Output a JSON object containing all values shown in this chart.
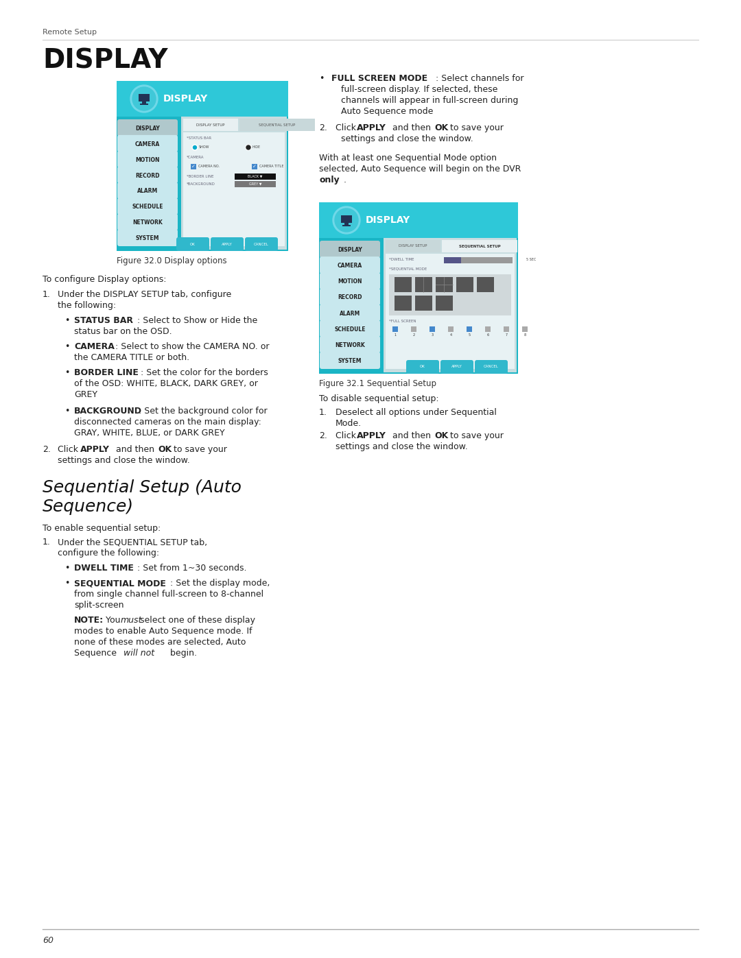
{
  "page_bg": "#ffffff",
  "teal_bg": "#1ab5c5",
  "teal_light": "#50d0e0",
  "teal_header": "#2ec8d8",
  "menu_btn_bg": "#c8e8ee",
  "menu_btn_selected": "#b0c8cc",
  "content_area_bg": "#c8dde0",
  "inner_content_bg": "#e8f2f4",
  "tab_selected_bg": "#d8e8ea",
  "tab_unselected_bg": "#b8c8ca",
  "btn_teal": "#30b8cc",
  "black_dropdown": "#111111",
  "grey_dropdown": "#888888",
  "checkbox_blue": "#4488cc",
  "text_dark": "#222222",
  "text_mid": "#555555",
  "text_light": "#777777",
  "header_text": "Remote Setup",
  "footer_number": "60",
  "fig0_caption": "Figure 32.0 Display options",
  "fig1_caption": "Figure 32.1 Sequential Setup",
  "menu_items": [
    "DISPLAY",
    "CAMERA",
    "MOTION",
    "RECORD",
    "ALARM",
    "SCHEDULE",
    "NETWORK",
    "SYSTEM"
  ]
}
